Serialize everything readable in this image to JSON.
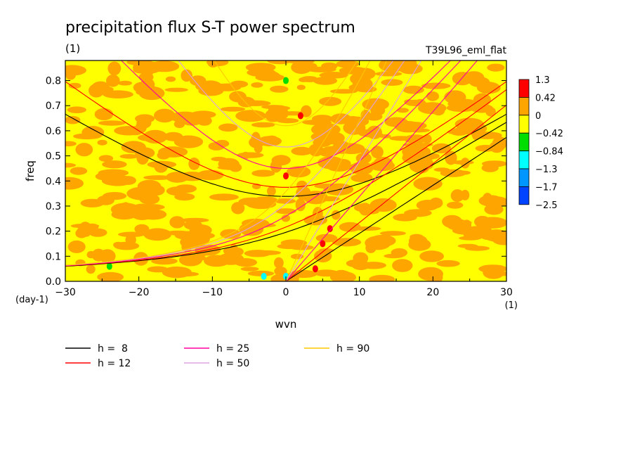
{
  "chart_data": {
    "type": "heatmap",
    "title": "precipitation flux S-T power spectrum",
    "subtitle_left": "(1)",
    "subtitle_right": "T39L96_eml_flat",
    "xlabel": "wvn",
    "ylabel": "freq",
    "x_unit": "(1)",
    "y_unit": "(day-1)",
    "xlim": [
      -30,
      30
    ],
    "ylim": [
      0,
      0.88
    ],
    "xticks": [
      -30,
      -20,
      -10,
      0,
      10,
      20,
      30
    ],
    "yticks": [
      0.0,
      0.1,
      0.2,
      0.3,
      0.4,
      0.5,
      0.6,
      0.7,
      0.8
    ],
    "grid": false,
    "colorbar": {
      "levels": [
        "1.3",
        "0.42",
        "0",
        "-0.42",
        "-0.84",
        "-1.3",
        "-1.7",
        "-2.5"
      ],
      "colors": [
        "#ff0000",
        "#ffa500",
        "#ffff00",
        "#00dd00",
        "#00ffff",
        "#0096ff",
        "#0044ff"
      ]
    },
    "dispersion_curves": [
      {
        "name": "h =  8",
        "h": 8,
        "color": "#000000"
      },
      {
        "name": "h = 12",
        "h": 12,
        "color": "#ff0000"
      },
      {
        "name": "h = 25",
        "h": 25,
        "color": "#ff00a0"
      },
      {
        "name": "h = 50",
        "h": 50,
        "color": "#e0a0e0"
      },
      {
        "name": "h = 90",
        "h": 90,
        "color": "#ffc800"
      }
    ],
    "features": [
      {
        "type": "blob",
        "x": 0,
        "y": 0.02,
        "color": "#00ffff"
      },
      {
        "type": "blob",
        "x": -3,
        "y": 0.02,
        "color": "#00ffff"
      },
      {
        "type": "blob",
        "x": 0,
        "y": 0.42,
        "color": "#ff0000"
      },
      {
        "type": "blob",
        "x": 6,
        "y": 0.21,
        "color": "#ff0000"
      },
      {
        "type": "blob",
        "x": 5,
        "y": 0.15,
        "color": "#ff0000"
      },
      {
        "type": "blob",
        "x": 4,
        "y": 0.05,
        "color": "#ff0000"
      },
      {
        "type": "blob",
        "x": 2,
        "y": 0.66,
        "color": "#ff0000"
      },
      {
        "type": "blob",
        "x": 0,
        "y": 0.8,
        "color": "#00dd00"
      },
      {
        "type": "blob",
        "x": -24,
        "y": 0.06,
        "color": "#00dd00"
      }
    ]
  }
}
